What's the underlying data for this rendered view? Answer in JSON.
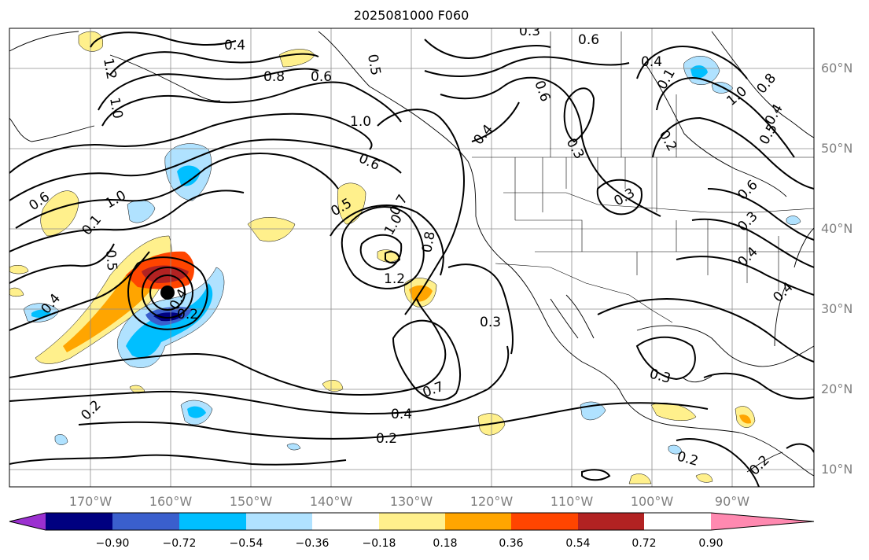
{
  "title": "2025081000 F060",
  "lat_labels": [
    "60°N",
    "50°N",
    "40°N",
    "30°N",
    "20°N",
    "10°N"
  ],
  "lon_labels": [
    "170°W",
    "160°W",
    "150°W",
    "140°W",
    "130°W",
    "120°W",
    "110°W",
    "100°W",
    "90°W"
  ],
  "contour_labels": [
    "0.4",
    "0.3",
    "0.5",
    "0.6",
    "0.4",
    "0.8",
    "0.6",
    "0.6",
    "1.2",
    "1.0",
    "1.0",
    "0.6",
    "0.5",
    "0.7",
    "1.0",
    "0.1",
    "0.5",
    "1.2",
    "0.8",
    "0.4",
    "0.3",
    "0.3",
    "0.7",
    "0.4",
    "0.2",
    "0.2",
    "0.2",
    "0.3",
    "0.1",
    "1.0",
    "0.8",
    "0.4",
    "0.5",
    "0.3",
    "0.4",
    "0.6",
    "0.3",
    "0.4",
    "0.4",
    "0.2",
    "1.0",
    "0.6",
    "0.4",
    "0.2",
    "0.2"
  ],
  "colorbar": {
    "ticks": [
      "−0.90",
      "−0.72",
      "−0.54",
      "−0.36",
      "−0.18",
      "0.18",
      "0.36",
      "0.54",
      "0.72",
      "0.90"
    ],
    "colors": [
      "#9b30d0",
      "#000080",
      "#3a5fcd",
      "#00bfff",
      "#b0e2ff",
      "#ffffff",
      "#fff08c",
      "#ffa500",
      "#ff4500",
      "#b22222",
      "#ff89b0"
    ]
  },
  "storm_center_label": "storm-center"
}
